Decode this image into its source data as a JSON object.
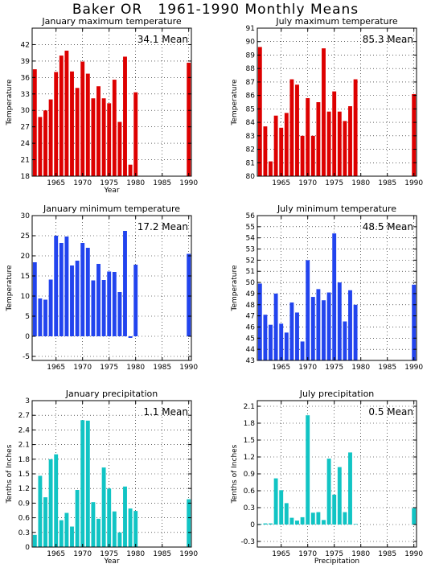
{
  "page": {
    "title": "Baker OR   1961-1990 Monthly Means"
  },
  "chart_data": [
    {
      "type": "bar",
      "title": "January maximum temperature",
      "ylabel": "Temperature",
      "xlabel": "Year",
      "mean_label": "34.1  Mean",
      "color": "#dd0000",
      "xlim": [
        1960.5,
        1990.5
      ],
      "ylim": [
        18,
        45
      ],
      "yticks": [
        18,
        21,
        24,
        27,
        30,
        33,
        36,
        39,
        42
      ],
      "xticks": [
        1965,
        1970,
        1975,
        1980,
        1985,
        1990
      ],
      "x": [
        1961,
        1962,
        1963,
        1964,
        1965,
        1966,
        1967,
        1968,
        1969,
        1970,
        1971,
        1972,
        1973,
        1974,
        1975,
        1976,
        1977,
        1978,
        1979,
        1980,
        1990
      ],
      "values": [
        37.5,
        28.8,
        30,
        32,
        37,
        40,
        40.9,
        37.1,
        34.1,
        38.9,
        36.7,
        32.2,
        34.4,
        32.2,
        31.3,
        35.6,
        27.9,
        39.8,
        20.1,
        33.3,
        38.7
      ]
    },
    {
      "type": "bar",
      "title": "July maximum temperature",
      "ylabel": "Temperature",
      "xlabel": "",
      "mean_label": "85.3  Mean",
      "color": "#dd0000",
      "xlim": [
        1960.5,
        1990.5
      ],
      "ylim": [
        80,
        91
      ],
      "yticks": [
        80,
        81,
        82,
        83,
        84,
        85,
        86,
        87,
        88,
        89,
        90,
        91
      ],
      "xticks": [
        1965,
        1970,
        1975,
        1980,
        1985,
        1990
      ],
      "x": [
        1961,
        1962,
        1963,
        1964,
        1965,
        1966,
        1967,
        1968,
        1969,
        1970,
        1971,
        1972,
        1973,
        1974,
        1975,
        1976,
        1977,
        1978,
        1979,
        1990
      ],
      "values": [
        89.6,
        83.7,
        81.1,
        84.5,
        83.6,
        84.7,
        87.2,
        86.8,
        83,
        85.8,
        83,
        85.5,
        89.5,
        84.8,
        86.3,
        84.8,
        84.1,
        85.2,
        87.2,
        86.1
      ]
    },
    {
      "type": "bar",
      "title": "January minimum temperature",
      "ylabel": "Temperature",
      "xlabel": "",
      "mean_label": "17.2  Mean",
      "color": "#2244ee",
      "xlim": [
        1960.5,
        1990.5
      ],
      "ylim": [
        -6,
        30
      ],
      "yticks": [
        -5,
        0,
        5,
        10,
        15,
        20,
        25,
        30
      ],
      "xticks": [
        1965,
        1970,
        1975,
        1980,
        1985,
        1990
      ],
      "x": [
        1961,
        1962,
        1963,
        1964,
        1965,
        1966,
        1967,
        1968,
        1969,
        1970,
        1971,
        1972,
        1973,
        1974,
        1975,
        1976,
        1977,
        1978,
        1979,
        1980,
        1990
      ],
      "values": [
        18.4,
        9.4,
        9.1,
        14.1,
        25,
        23.2,
        24.8,
        17.6,
        18.8,
        23.2,
        22,
        13.9,
        18,
        14,
        16.1,
        16,
        11,
        26.2,
        -0.4,
        17.8,
        20.5
      ]
    },
    {
      "type": "bar",
      "title": "July minimum temperature",
      "ylabel": "Temperature",
      "xlabel": "",
      "mean_label": "48.5  Mean",
      "color": "#2244ee",
      "xlim": [
        1960.5,
        1990.5
      ],
      "ylim": [
        43,
        56
      ],
      "yticks": [
        43,
        44,
        45,
        46,
        47,
        48,
        49,
        50,
        51,
        52,
        53,
        54,
        55,
        56
      ],
      "xticks": [
        1965,
        1970,
        1975,
        1980,
        1985,
        1990
      ],
      "x": [
        1961,
        1962,
        1963,
        1964,
        1965,
        1966,
        1967,
        1968,
        1969,
        1970,
        1971,
        1972,
        1973,
        1974,
        1975,
        1976,
        1977,
        1978,
        1979,
        1990
      ],
      "values": [
        49.9,
        47.1,
        46.2,
        49,
        46.3,
        45.5,
        48.2,
        47.3,
        44.7,
        52,
        48.7,
        49.4,
        48.4,
        49.1,
        54.4,
        50,
        46.5,
        49.3,
        48,
        49.8
      ]
    },
    {
      "type": "bar",
      "title": "January precipitation",
      "ylabel": "Tenths of Inches",
      "xlabel": "Year",
      "mean_label": "1.1  Mean",
      "color": "#11c4c4",
      "xlim": [
        1960.5,
        1990.5
      ],
      "ylim": [
        0,
        3
      ],
      "yticks": [
        0,
        0.3,
        0.6,
        0.9,
        1.2,
        1.5,
        1.8,
        2.1,
        2.4,
        2.7,
        3
      ],
      "xticks": [
        1965,
        1970,
        1975,
        1980,
        1985,
        1990
      ],
      "x": [
        1961,
        1962,
        1963,
        1964,
        1965,
        1966,
        1967,
        1968,
        1969,
        1970,
        1971,
        1972,
        1973,
        1974,
        1975,
        1976,
        1977,
        1978,
        1979,
        1980,
        1990
      ],
      "values": [
        0.25,
        1.46,
        1.02,
        1.8,
        1.9,
        0.55,
        0.7,
        0.42,
        1.17,
        2.6,
        2.59,
        0.92,
        0.58,
        1.63,
        1.2,
        0.73,
        0.3,
        1.24,
        0.79,
        0.74,
        0.98
      ]
    },
    {
      "type": "bar",
      "title": "July precipitation",
      "ylabel": "Tenths of Inches",
      "xlabel": "Precipitation",
      "mean_label": "0.5  Mean",
      "color": "#11c4c4",
      "xlim": [
        1960.5,
        1990.5
      ],
      "ylim": [
        -0.4,
        2.2
      ],
      "yticks": [
        -0.3,
        0,
        0.3,
        0.6,
        0.9,
        1.2,
        1.5,
        1.8,
        2.1
      ],
      "xticks": [
        1965,
        1970,
        1975,
        1980,
        1985,
        1990
      ],
      "x": [
        1961,
        1962,
        1963,
        1964,
        1965,
        1966,
        1967,
        1968,
        1969,
        1970,
        1971,
        1972,
        1973,
        1974,
        1975,
        1976,
        1977,
        1978,
        1979,
        1990
      ],
      "values": [
        0.01,
        0.02,
        0.02,
        0.82,
        0.61,
        0.38,
        0.12,
        0.07,
        0.13,
        1.94,
        0.21,
        0.22,
        0.08,
        1.17,
        0.53,
        1.02,
        0.22,
        1.28,
        0.01,
        0.29
      ]
    }
  ]
}
